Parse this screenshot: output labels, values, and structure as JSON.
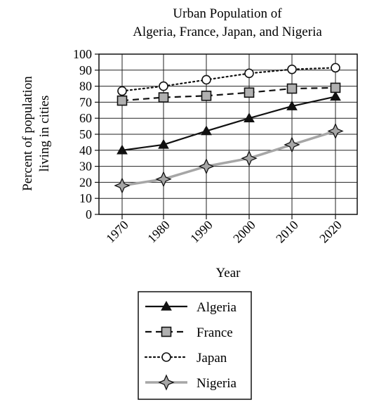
{
  "chart_data": {
    "type": "line",
    "title_lines": [
      "Urban Population of",
      "Algeria, France, Japan, and Nigeria"
    ],
    "xlabel": "Year",
    "ylabel_lines": [
      "Percent of population",
      "living in cities"
    ],
    "x": [
      "1970",
      "1980",
      "1990",
      "2000",
      "2010",
      "2020"
    ],
    "y_ticks": [
      "0",
      "10",
      "20",
      "30",
      "40",
      "50",
      "60",
      "70",
      "80",
      "90",
      "100"
    ],
    "ylim": [
      0,
      100
    ],
    "grid": true,
    "legend_position": "bottom-center",
    "series": [
      {
        "name": "Algeria",
        "values": [
          40,
          43.5,
          52,
          60,
          67.5,
          73.5
        ],
        "marker": "filled-triangle",
        "line_style": "solid",
        "color": "#111111"
      },
      {
        "name": "France",
        "values": [
          71,
          73,
          74,
          76,
          78.5,
          79
        ],
        "marker": "gray-square",
        "line_style": "dashed",
        "color": "#111111"
      },
      {
        "name": "Japan",
        "values": [
          77,
          80,
          84,
          88,
          90.5,
          91.5
        ],
        "marker": "open-circle",
        "line_style": "dotted",
        "color": "#111111"
      },
      {
        "name": "Nigeria",
        "values": [
          18,
          22,
          30,
          35,
          43.5,
          52
        ],
        "marker": "gray-star",
        "line_style": "solid",
        "color": "#a6a6a6"
      }
    ]
  }
}
